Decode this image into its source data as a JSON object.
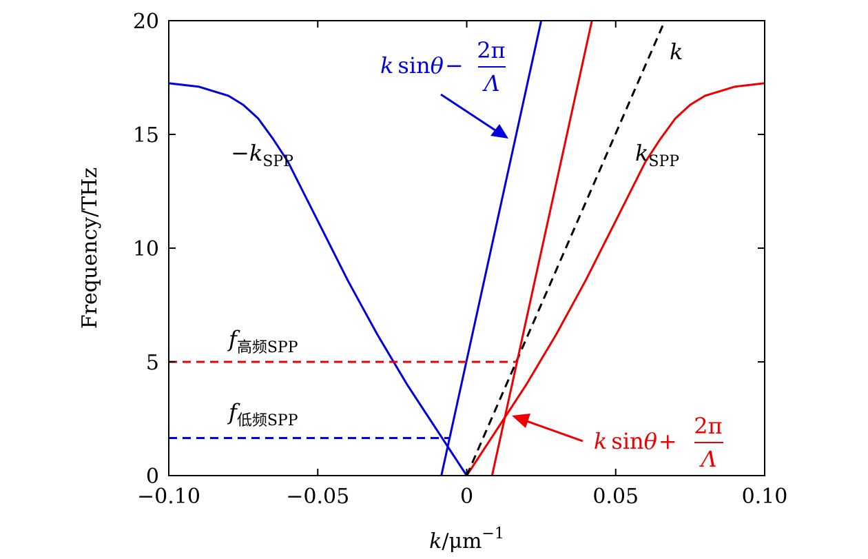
{
  "chart_data": {
    "type": "line",
    "xlabel": {
      "var": "k",
      "sep": "/",
      "unit": "μm",
      "exp": "−1"
    },
    "ylabel": "Frequency/THz",
    "xlim": [
      -0.1,
      0.1
    ],
    "ylim": [
      0,
      20
    ],
    "xticks": [
      {
        "value": -0.1,
        "label": "−0.10"
      },
      {
        "value": -0.05,
        "label": "−0.05"
      },
      {
        "value": 0,
        "label": "0"
      },
      {
        "value": 0.05,
        "label": "0.05"
      },
      {
        "value": 0.1,
        "label": "0.10"
      }
    ],
    "yticks": [
      {
        "value": 0,
        "label": "0"
      },
      {
        "value": 5,
        "label": "5"
      },
      {
        "value": 10,
        "label": "10"
      },
      {
        "value": 15,
        "label": "15"
      },
      {
        "value": 20,
        "label": "20"
      }
    ],
    "grid": false,
    "series": [
      {
        "id": "neg-kspp",
        "color": "#0000dd",
        "dash": "solid",
        "x": [
          -0.1,
          -0.09,
          -0.08,
          -0.075,
          -0.07,
          -0.065,
          -0.06,
          -0.055,
          -0.05,
          -0.045,
          -0.04,
          -0.035,
          -0.03,
          -0.025,
          -0.02,
          -0.015,
          -0.01,
          -0.005,
          0.0
        ],
        "y": [
          17.25,
          17.1,
          16.7,
          16.3,
          15.7,
          14.8,
          13.8,
          12.5,
          11.2,
          9.9,
          8.6,
          7.4,
          6.2,
          5.1,
          4.0,
          3.0,
          2.0,
          1.0,
          0.0
        ]
      },
      {
        "id": "kspp",
        "color": "#ee0000",
        "dash": "solid",
        "x": [
          0.0,
          0.005,
          0.01,
          0.015,
          0.02,
          0.025,
          0.03,
          0.035,
          0.04,
          0.045,
          0.05,
          0.055,
          0.06,
          0.065,
          0.07,
          0.075,
          0.08,
          0.09,
          0.1
        ],
        "y": [
          0.0,
          1.0,
          2.0,
          3.0,
          4.0,
          5.1,
          6.2,
          7.4,
          8.6,
          9.9,
          11.2,
          12.5,
          13.8,
          14.8,
          15.7,
          16.3,
          16.7,
          17.1,
          17.25
        ]
      },
      {
        "id": "light-line",
        "color": "#000000",
        "dash": "dashed",
        "x": [
          0.0,
          0.0665
        ],
        "y": [
          0.0,
          20.0
        ]
      },
      {
        "id": "ksin-minus",
        "color": "#0000dd",
        "dash": "solid",
        "x": [
          -0.0085,
          0.025
        ],
        "y": [
          0.0,
          20.0
        ]
      },
      {
        "id": "ksin-plus",
        "color": "#ee0000",
        "dash": "solid",
        "x": [
          0.0085,
          0.042
        ],
        "y": [
          0.0,
          20.0
        ]
      },
      {
        "id": "f-high",
        "color": "#ee0000",
        "dash": "dashed",
        "x": [
          -0.1,
          0.0165
        ],
        "y": [
          5.0,
          5.0
        ]
      },
      {
        "id": "f-low",
        "color": "#0000dd",
        "dash": "dashed",
        "x": [
          -0.1,
          -0.006
        ],
        "y": [
          1.65,
          1.65
        ]
      }
    ],
    "annotations": {
      "neg_kspp": {
        "minus": "−",
        "var": "k",
        "sub": "SPP",
        "color": "#000000"
      },
      "kspp": {
        "var": "k",
        "sub": "SPP",
        "color": "#000000"
      },
      "k": {
        "var": "k",
        "color": "#000000"
      },
      "f_high": {
        "var": "f",
        "sub": "高频SPP",
        "color": "#000000"
      },
      "f_low": {
        "var": "f",
        "sub": "低频SPP",
        "color": "#000000"
      },
      "ksin_minus": {
        "var": "k",
        "func": "sin",
        "theta": "θ",
        "op": "−",
        "num": "2π",
        "den": "Λ",
        "color": "#0000dd"
      },
      "ksin_plus": {
        "var": "k",
        "func": "sin",
        "theta": "θ",
        "op": "+",
        "num": "2π",
        "den": "Λ",
        "color": "#ee0000"
      }
    }
  }
}
